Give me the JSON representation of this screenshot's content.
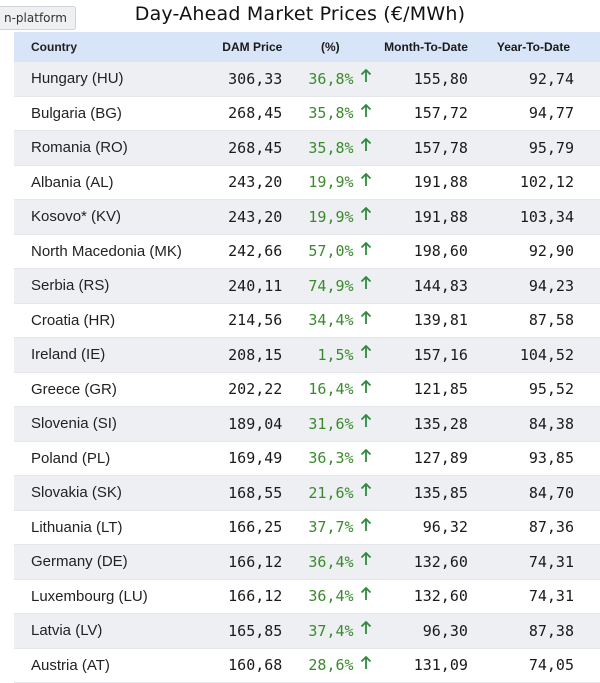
{
  "tab_chip": "n-platform",
  "chart_data": {
    "type": "table",
    "title": "Day-Ahead Market Prices (€/MWh)",
    "columns": [
      "Country",
      "DAM Price",
      "(%)",
      "Month-To-Date",
      "Year-To-Date"
    ],
    "rows": [
      {
        "country": "Hungary (HU)",
        "dam": "306,33",
        "pct": "36,8%",
        "mtd": "155,80",
        "ytd": "92,74"
      },
      {
        "country": "Bulgaria (BG)",
        "dam": "268,45",
        "pct": "35,8%",
        "mtd": "157,72",
        "ytd": "94,77"
      },
      {
        "country": "Romania (RO)",
        "dam": "268,45",
        "pct": "35,8%",
        "mtd": "157,78",
        "ytd": "95,79"
      },
      {
        "country": "Albania (AL)",
        "dam": "243,20",
        "pct": "19,9%",
        "mtd": "191,88",
        "ytd": "102,12"
      },
      {
        "country": "Kosovo* (KV)",
        "dam": "243,20",
        "pct": "19,9%",
        "mtd": "191,88",
        "ytd": "103,34"
      },
      {
        "country": "North Macedonia (MK)",
        "dam": "242,66",
        "pct": "57,0%",
        "mtd": "198,60",
        "ytd": "92,90"
      },
      {
        "country": "Serbia (RS)",
        "dam": "240,11",
        "pct": "74,9%",
        "mtd": "144,83",
        "ytd": "94,23"
      },
      {
        "country": "Croatia (HR)",
        "dam": "214,56",
        "pct": "34,4%",
        "mtd": "139,81",
        "ytd": "87,58"
      },
      {
        "country": "Ireland (IE)",
        "dam": "208,15",
        "pct": "1,5%",
        "mtd": "157,16",
        "ytd": "104,52"
      },
      {
        "country": "Greece (GR)",
        "dam": "202,22",
        "pct": "16,4%",
        "mtd": "121,85",
        "ytd": "95,52"
      },
      {
        "country": "Slovenia (SI)",
        "dam": "189,04",
        "pct": "31,6%",
        "mtd": "135,28",
        "ytd": "84,38"
      },
      {
        "country": "Poland (PL)",
        "dam": "169,49",
        "pct": "36,3%",
        "mtd": "127,89",
        "ytd": "93,85"
      },
      {
        "country": "Slovakia (SK)",
        "dam": "168,55",
        "pct": "21,6%",
        "mtd": "135,85",
        "ytd": "84,70"
      },
      {
        "country": "Lithuania (LT)",
        "dam": "166,25",
        "pct": "37,7%",
        "mtd": "96,32",
        "ytd": "87,36"
      },
      {
        "country": "Germany (DE)",
        "dam": "166,12",
        "pct": "36,4%",
        "mtd": "132,60",
        "ytd": "74,31"
      },
      {
        "country": "Luxembourg (LU)",
        "dam": "166,12",
        "pct": "36,4%",
        "mtd": "132,60",
        "ytd": "74,31"
      },
      {
        "country": "Latvia (LV)",
        "dam": "165,85",
        "pct": "37,4%",
        "mtd": "96,30",
        "ytd": "87,38"
      },
      {
        "country": "Austria (AT)",
        "dam": "160,68",
        "pct": "28,6%",
        "mtd": "131,09",
        "ytd": "74,05"
      }
    ],
    "trend_icon": "arrow-up-icon"
  },
  "colors": {
    "header_bg": "#d8e4f7",
    "row_alt_bg": "#edeff2",
    "positive": "#3a8a2c",
    "arrow": "#2e8a3e"
  }
}
